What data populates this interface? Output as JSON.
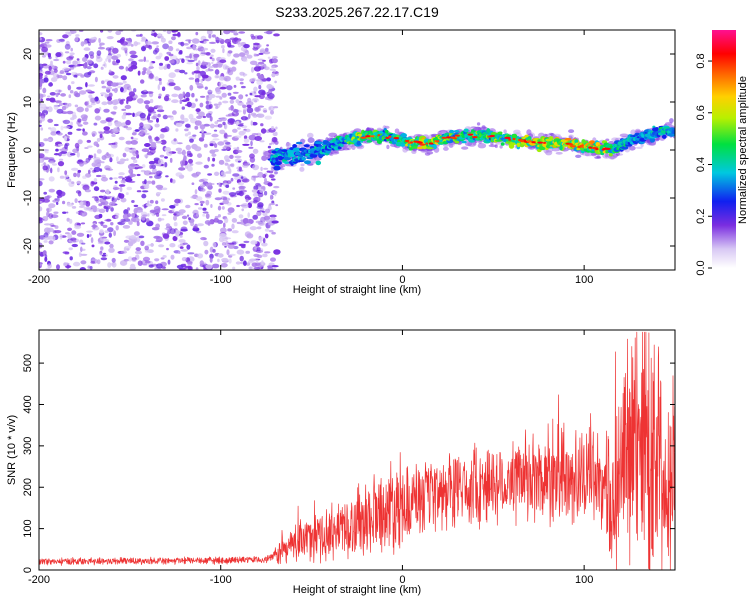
{
  "title": "S233.2025.267.22.17.C19",
  "chart_data": [
    {
      "type": "heatmap",
      "xlabel": "Height of straight line (km)",
      "ylabel": "Frequency (Hz)",
      "xlim": [
        -200,
        150
      ],
      "ylim": [
        -25,
        25
      ],
      "x_ticks": [
        -200,
        -100,
        0,
        100
      ],
      "y_ticks": [
        -20,
        -10,
        0,
        10,
        20
      ],
      "colorbar": {
        "label": "Normalized spectral amplitude",
        "range": [
          0.0,
          0.92
        ],
        "ticks": [
          0.0,
          0.2,
          0.4,
          0.6,
          0.8
        ],
        "tick_labels": [
          "0.0",
          "0.2",
          "0.4",
          "0.6",
          "0.8"
        ]
      },
      "noise_region": {
        "x_from": -200,
        "x_to": -72,
        "amplitude": 0.1
      },
      "ridge": {
        "x": [
          -72,
          -65,
          -55,
          -45,
          -35,
          -25,
          -15,
          -5,
          5,
          15,
          25,
          35,
          45,
          55,
          65,
          75,
          85,
          95,
          105,
          115,
          125,
          135,
          145,
          150
        ],
        "freq": [
          -2,
          -1,
          -1,
          0,
          1.5,
          2.5,
          3,
          2.5,
          1.5,
          1.5,
          2.5,
          3,
          3,
          2.5,
          2,
          1.5,
          1.5,
          1,
          0.5,
          0,
          2,
          3,
          4,
          4
        ],
        "amplitude": [
          0.3,
          0.35,
          0.3,
          0.35,
          0.45,
          0.6,
          0.55,
          0.5,
          0.7,
          0.75,
          0.6,
          0.55,
          0.55,
          0.6,
          0.7,
          0.85,
          0.8,
          0.8,
          0.85,
          0.6,
          0.3,
          0.35,
          0.4,
          0.4
        ]
      }
    },
    {
      "type": "line",
      "xlabel": "Height of straight line (km)",
      "ylabel": "SNR (10 * v/v)",
      "xlim": [
        -200,
        150
      ],
      "ylim": [
        0,
        580
      ],
      "x_ticks": [
        -200,
        -100,
        0,
        100
      ],
      "y_ticks": [
        0,
        100,
        200,
        300,
        400,
        500
      ],
      "series": [
        {
          "name": "SNR",
          "color": "#ee3333",
          "x": [
            -200,
            -150,
            -100,
            -75,
            -65,
            -55,
            -45,
            -35,
            -25,
            -15,
            -5,
            5,
            15,
            25,
            35,
            45,
            55,
            65,
            75,
            85,
            95,
            105,
            115,
            125,
            135,
            145,
            150
          ],
          "y": [
            20,
            22,
            23,
            25,
            50,
            75,
            80,
            100,
            120,
            140,
            160,
            165,
            175,
            190,
            200,
            210,
            210,
            215,
            220,
            225,
            225,
            240,
            150,
            300,
            330,
            250,
            250
          ]
        }
      ]
    }
  ],
  "colors": {
    "line": "#ee3333",
    "noise_dot": "#8a3fe0",
    "axis": "#000000"
  }
}
